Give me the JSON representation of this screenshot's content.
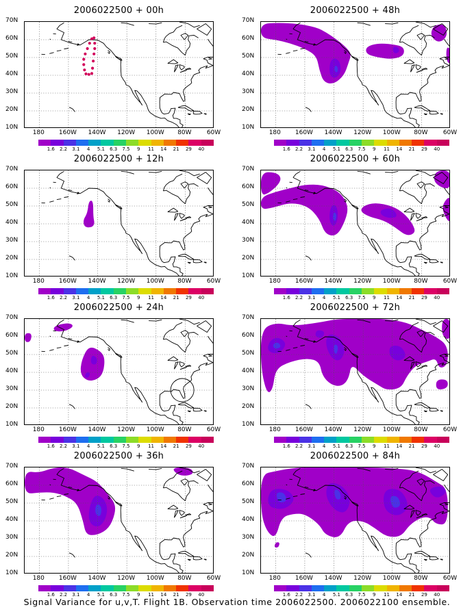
{
  "caption": "Signal Variance for u,v,T. Flight 1B. Observation time 2006022500. 2006022100 ensemble.",
  "axes": {
    "y_labels": [
      "70N",
      "60N",
      "50N",
      "40N",
      "30N",
      "20N",
      "10N"
    ],
    "x_labels": [
      "180",
      "160W",
      "140W",
      "120W",
      "100W",
      "80W",
      "60W"
    ]
  },
  "colorbar": {
    "labels": [
      "1.6",
      "2.2",
      "3.1",
      "4",
      "5.1",
      "6.3",
      "7.5",
      "9",
      "11",
      "14",
      "21",
      "29",
      "40"
    ],
    "colors": [
      "#a000c8",
      "#7800dc",
      "#4b32e6",
      "#1e6ef0",
      "#00a0c8",
      "#00c8a0",
      "#28d264",
      "#8cdc28",
      "#dcdc00",
      "#f0b400",
      "#f07800",
      "#f03200",
      "#dc0064",
      "#c8005a"
    ]
  },
  "panels": [
    {
      "title": "2006022500 + 00h"
    },
    {
      "title": "2006022500 + 48h"
    },
    {
      "title": "2006022500 + 12h"
    },
    {
      "title": "2006022500 + 60h"
    },
    {
      "title": "2006022500 + 24h"
    },
    {
      "title": "2006022500 + 72h"
    },
    {
      "title": "2006022500 + 36h"
    },
    {
      "title": "2006022500 + 84h"
    }
  ]
}
